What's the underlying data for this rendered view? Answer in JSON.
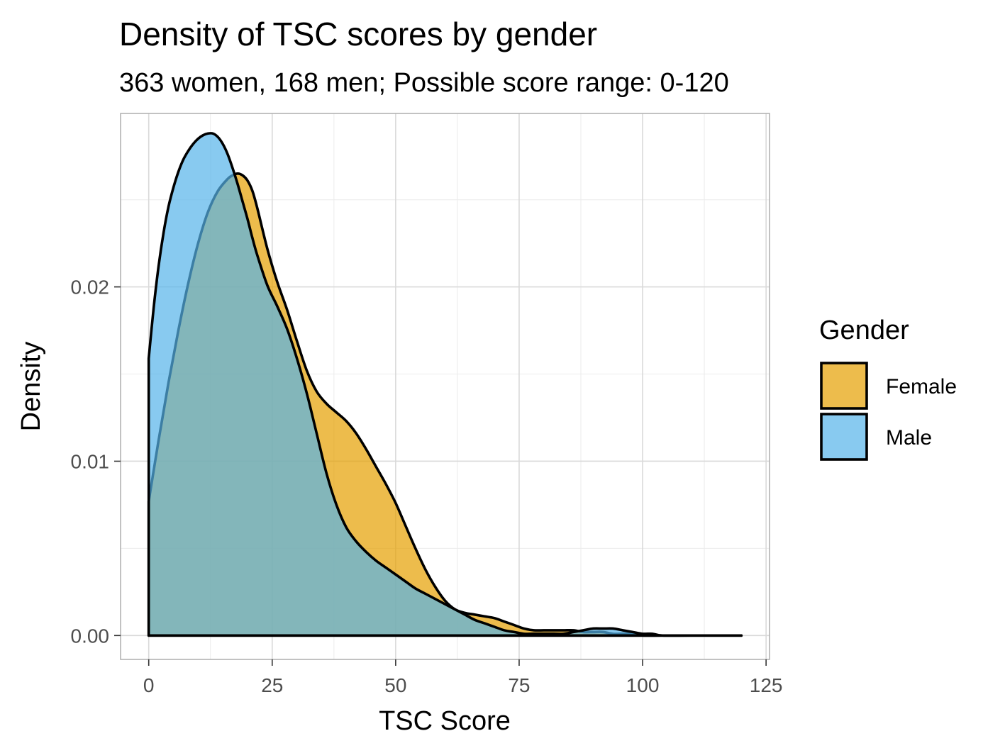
{
  "chart_data": {
    "type": "area",
    "title": "Density of TSC scores by gender",
    "subtitle": "363 women, 168 men; Possible score range: 0-120",
    "xlabel": "TSC Score",
    "ylabel": "Density",
    "xlim": [
      -5.7,
      125.7
    ],
    "ylim": [
      -0.00137,
      0.02995
    ],
    "x_ticks": [
      0,
      25,
      50,
      75,
      100,
      125
    ],
    "x_tick_labels": [
      "0",
      "25",
      "50",
      "75",
      "100",
      "125"
    ],
    "y_ticks": [
      0.0,
      0.01,
      0.02
    ],
    "y_tick_labels": [
      "0.00",
      "0.01",
      "0.02"
    ],
    "grid": true,
    "legend": {
      "title": "Gender",
      "placement": "right"
    },
    "series": [
      {
        "name": "Female",
        "color": "#E69F00",
        "x": [
          0,
          2,
          4,
          6,
          8,
          10,
          12,
          14,
          16,
          17,
          18,
          19,
          20,
          21,
          22,
          24,
          26,
          28,
          30,
          32,
          34,
          36,
          38,
          40,
          42,
          44,
          46,
          48,
          50,
          52,
          54,
          56,
          58,
          60,
          62,
          64,
          66,
          68,
          70,
          72,
          74,
          76,
          78,
          80,
          82,
          84,
          86,
          88,
          90,
          92,
          94,
          96,
          98,
          100,
          104,
          110,
          120
        ],
        "values": [
          0.0077,
          0.0112,
          0.0145,
          0.0175,
          0.0202,
          0.0225,
          0.0243,
          0.0255,
          0.0262,
          0.0264,
          0.0265,
          0.0264,
          0.0261,
          0.0255,
          0.0245,
          0.0222,
          0.0203,
          0.0187,
          0.0169,
          0.0152,
          0.014,
          0.0133,
          0.0128,
          0.0123,
          0.0116,
          0.0107,
          0.0097,
          0.0087,
          0.0076,
          0.0063,
          0.005,
          0.0038,
          0.0028,
          0.002,
          0.0015,
          0.0013,
          0.0012,
          0.0011,
          0.001,
          0.0008,
          0.0006,
          0.0004,
          0.0003,
          0.0003,
          0.0003,
          0.0003,
          0.0003,
          0.0002,
          0.0002,
          0.0002,
          0.0001,
          0.0001,
          0.0001,
          0.0,
          0.0,
          0.0,
          0.0
        ]
      },
      {
        "name": "Male",
        "color": "#56B4E9",
        "x": [
          0,
          1,
          2,
          3,
          4,
          5,
          6,
          7,
          8,
          9,
          10,
          11,
          12,
          13,
          14,
          15,
          16,
          17,
          18,
          19,
          20,
          21,
          22,
          24,
          26,
          28,
          30,
          32,
          34,
          36,
          38,
          40,
          42,
          44,
          46,
          48,
          50,
          52,
          54,
          56,
          58,
          60,
          62,
          64,
          66,
          68,
          70,
          72,
          74,
          76,
          78,
          80,
          82,
          84,
          86,
          88,
          90,
          92,
          94,
          96,
          98,
          100,
          102,
          104,
          110,
          120
        ],
        "values": [
          0.0159,
          0.0188,
          0.0212,
          0.0231,
          0.0246,
          0.0257,
          0.0266,
          0.0273,
          0.0278,
          0.0282,
          0.0285,
          0.0287,
          0.0288,
          0.0288,
          0.0286,
          0.0282,
          0.0276,
          0.0268,
          0.0259,
          0.0249,
          0.0239,
          0.0228,
          0.0218,
          0.0201,
          0.0189,
          0.0176,
          0.0159,
          0.0139,
          0.0116,
          0.0093,
          0.0075,
          0.0062,
          0.0054,
          0.0048,
          0.0043,
          0.0039,
          0.0035,
          0.0031,
          0.0027,
          0.0024,
          0.0021,
          0.0018,
          0.0015,
          0.0012,
          0.0009,
          0.0007,
          0.0005,
          0.0003,
          0.0002,
          0.0001,
          0.0001,
          0.0001,
          0.0001,
          0.0001,
          0.0002,
          0.0003,
          0.0004,
          0.0004,
          0.0004,
          0.0003,
          0.0002,
          0.0001,
          0.0001,
          0.0,
          0.0,
          0.0
        ]
      }
    ]
  }
}
